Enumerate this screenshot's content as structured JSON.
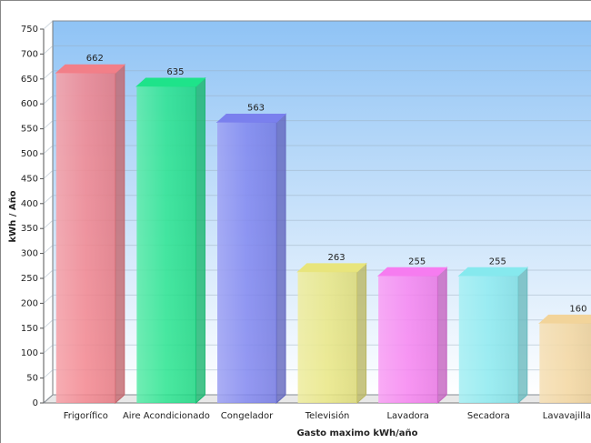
{
  "chart_data": {
    "type": "bar3d",
    "x_label": "Gasto maximo kWh/año",
    "y_label": "kWh / Año",
    "categories": [
      "Frigorífico",
      "Aire Acondicionado",
      "Congelador",
      "Televisión",
      "Lavadora",
      "Secadora",
      "Lavavajillas"
    ],
    "values": [
      662,
      635,
      563,
      263,
      255,
      255,
      160
    ],
    "colors": [
      "#f27f88",
      "#1ee38a",
      "#7a80ee",
      "#e8e57c",
      "#f67cf0",
      "#86e9ee",
      "#f2d49a"
    ],
    "ylim": [
      0,
      750
    ],
    "yticks": [
      0,
      50,
      100,
      150,
      200,
      250,
      300,
      350,
      400,
      450,
      500,
      550,
      600,
      650,
      700,
      750
    ],
    "grid": true
  }
}
